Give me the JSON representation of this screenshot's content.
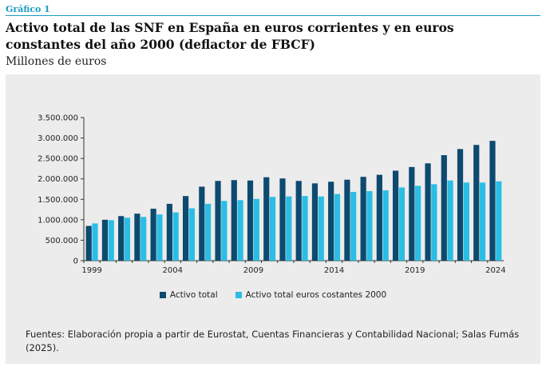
{
  "figure_label": "Gráfico 1",
  "title": "Activo total de las SNF en España en euros corrientes y en euros constantes del año 2000 (deflactor de FBCF)",
  "subtitle": "Millones de euros",
  "source": "Fuentes: Elaboración propia a partir de Eurostat, Cuentas Financieras y Contabilidad Nacional; Salas Fumás (2025).",
  "colors": {
    "series1": "#0d4a6f",
    "series2": "#2bbde6",
    "background": "#ececec",
    "accent": "#1a9dc4"
  },
  "chart_data": {
    "type": "bar",
    "title": "Activo total de las SNF en España en euros corrientes y en euros constantes del año 2000 (deflactor de FBCF)",
    "ylabel": "Millones de euros",
    "categories": [
      "1999",
      "2000",
      "2001",
      "2002",
      "2003",
      "2004",
      "2005",
      "2006",
      "2007",
      "2008",
      "2009",
      "2010",
      "2011",
      "2012",
      "2013",
      "2014",
      "2015",
      "2016",
      "2017",
      "2018",
      "2019",
      "2020",
      "2021",
      "2022",
      "2023",
      "2024"
    ],
    "xtick_labels": [
      "1999",
      "2004",
      "2009",
      "2014",
      "2019",
      "2024"
    ],
    "ytick_labels": [
      "0",
      "500.000",
      "1.000.000",
      "1.500.000",
      "2.000.000",
      "2.500.000",
      "3.000.000",
      "3.500.000"
    ],
    "ylim": [
      0,
      3500000
    ],
    "series": [
      {
        "name": "Activo total",
        "color": "#0d4a6f",
        "values": [
          850000,
          1000000,
          1090000,
          1150000,
          1270000,
          1390000,
          1580000,
          1810000,
          1950000,
          1970000,
          1960000,
          2040000,
          2010000,
          1950000,
          1890000,
          1930000,
          1980000,
          2050000,
          2100000,
          2200000,
          2290000,
          2380000,
          2580000,
          2730000,
          2830000,
          2930000
        ]
      },
      {
        "name": "Activo total euros costantes 2000",
        "color": "#2bbde6",
        "values": [
          910000,
          990000,
          1050000,
          1070000,
          1130000,
          1180000,
          1280000,
          1390000,
          1460000,
          1480000,
          1510000,
          1560000,
          1570000,
          1580000,
          1570000,
          1630000,
          1680000,
          1700000,
          1720000,
          1790000,
          1830000,
          1870000,
          1960000,
          1910000,
          1910000,
          1940000
        ]
      }
    ],
    "legend": {
      "position": "bottom"
    },
    "grid": false
  }
}
